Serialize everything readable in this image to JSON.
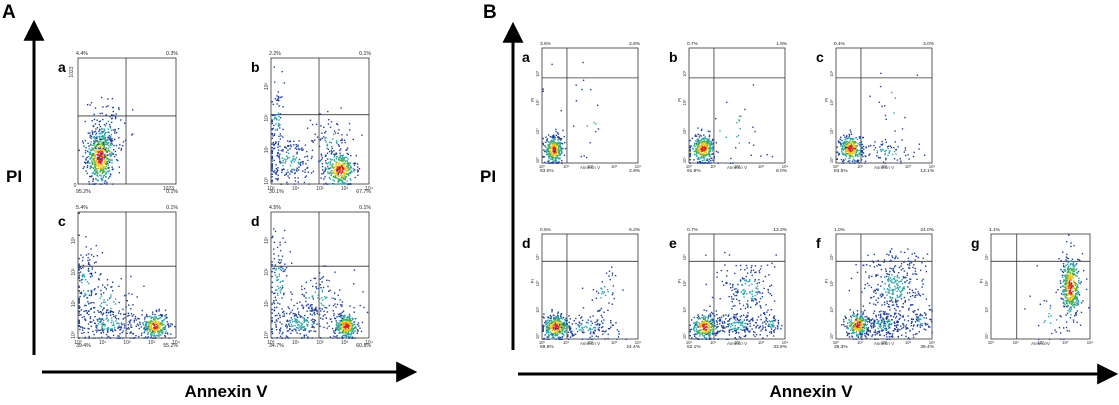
{
  "figure": {
    "panel_A_label": "A",
    "panel_B_label": "B",
    "axis_x_title": "Annexin V",
    "axis_y_title": "PI",
    "colors": {
      "frame": "#333333",
      "dot": "#1f3f9a",
      "density_mid": "#2aa3a8",
      "density_hot": "#d7261e",
      "density_warm": "#f2c21b",
      "density_green": "#45b04a"
    }
  },
  "chart_data": [
    {
      "type": "scatter",
      "panel": "A",
      "subpanel": "a",
      "quadrants": {
        "upper_left": "4.4%",
        "upper_right": "0.3%",
        "lower_left": "95.2%",
        "lower_right": "0.1%"
      },
      "y_tick_label": "1023",
      "x_end_label": "1023",
      "origin_label": "0",
      "scale": "linear",
      "population": "single cluster near origin"
    },
    {
      "type": "scatter",
      "panel": "A",
      "subpanel": "b",
      "quadrants": {
        "upper_left": "2.2%",
        "upper_right": "0.1%",
        "lower_left": "30.1%",
        "lower_right": "67.7%"
      },
      "x_ticks": [
        "10⁰",
        "10¹",
        "10²",
        "10³",
        "10⁴"
      ],
      "y_ticks": [
        "10⁰",
        "10¹",
        "10²",
        "10³"
      ],
      "scale": "log"
    },
    {
      "type": "scatter",
      "panel": "A",
      "subpanel": "c",
      "quadrants": {
        "upper_left": "5.4%",
        "upper_right": "0.1%",
        "lower_left": "39.4%",
        "lower_right": "55.2%"
      },
      "x_ticks": [
        "10⁰",
        "10¹",
        "10²",
        "10³",
        "10⁴"
      ],
      "y_ticks": [
        "10⁰",
        "10¹",
        "10²",
        "10³"
      ],
      "scale": "log"
    },
    {
      "type": "scatter",
      "panel": "A",
      "subpanel": "d",
      "quadrants": {
        "upper_left": "4.5%",
        "upper_right": "0.1%",
        "lower_left": "34.7%",
        "lower_right": "60.8%"
      },
      "x_ticks": [
        "10⁰",
        "10¹",
        "10²",
        "10³",
        "10⁴"
      ],
      "y_ticks": [
        "10⁰",
        "10¹",
        "10²",
        "10³"
      ],
      "scale": "log"
    },
    {
      "type": "scatter",
      "panel": "B",
      "subpanel": "a",
      "quadrants": {
        "upper_left": "3.6%",
        "upper_right": "2.6%",
        "lower_left": "93.0%",
        "lower_right": "2.9%"
      },
      "x_ticks": [
        "10⁰",
        "10¹",
        "10²",
        "10³",
        "10⁴"
      ],
      "y_ticks": [
        "10⁰",
        "10¹",
        "10²",
        "10³"
      ],
      "xlabel": "Annexin V",
      "ylabel": "PI",
      "scale": "log"
    },
    {
      "type": "scatter",
      "panel": "B",
      "subpanel": "b",
      "quadrants": {
        "upper_left": "0.7%",
        "upper_right": "1.9%",
        "lower_left": "91.9%",
        "lower_right": "6.0%"
      },
      "x_ticks": [
        "10⁰",
        "10¹",
        "10²",
        "10³",
        "10⁴"
      ],
      "y_ticks": [
        "10⁰",
        "10¹",
        "10²",
        "10³"
      ],
      "xlabel": "Annexin V",
      "ylabel": "PI",
      "scale": "log"
    },
    {
      "type": "scatter",
      "panel": "B",
      "subpanel": "c",
      "quadrants": {
        "upper_left": "0.4%",
        "upper_right": "3.0%",
        "lower_left": "83.5%",
        "lower_right": "13.1%"
      },
      "x_ticks": [
        "10⁰",
        "10¹",
        "10²",
        "10³",
        "10⁴"
      ],
      "y_ticks": [
        "10⁰",
        "10¹",
        "10²",
        "10³"
      ],
      "xlabel": "Annexin V",
      "ylabel": "PI",
      "scale": "log"
    },
    {
      "type": "scatter",
      "panel": "B",
      "subpanel": "d",
      "quadrants": {
        "upper_left": "0.5%",
        "upper_right": "6.2%",
        "lower_left": "68.9%",
        "lower_right": "24.4%"
      },
      "x_ticks": [
        "10⁰",
        "10¹",
        "10²",
        "10³",
        "10⁴"
      ],
      "y_ticks": [
        "10⁰",
        "10¹",
        "10²",
        "10³"
      ],
      "xlabel": "Annexin V",
      "ylabel": "PI",
      "scale": "log"
    },
    {
      "type": "scatter",
      "panel": "B",
      "subpanel": "e",
      "quadrants": {
        "upper_left": "0.7%",
        "upper_right": "13.3%",
        "lower_left": "52.1%",
        "lower_right": "33.9%"
      },
      "x_ticks": [
        "10⁰",
        "10¹",
        "10²",
        "10³",
        "10⁴"
      ],
      "y_ticks": [
        "10⁰",
        "10¹",
        "10²",
        "10³"
      ],
      "xlabel": "Annexin V",
      "ylabel": "PI",
      "scale": "log"
    },
    {
      "type": "scatter",
      "panel": "B",
      "subpanel": "f",
      "quadrants": {
        "upper_left": "1.0%",
        "upper_right": "24.0%",
        "lower_left": "35.3%",
        "lower_right": "39.4%"
      },
      "x_ticks": [
        "10⁰",
        "10¹",
        "10²",
        "10³",
        "10⁴"
      ],
      "y_ticks": [
        "10⁰",
        "10¹",
        "10²",
        "10³"
      ],
      "xlabel": "Annexin V",
      "ylabel": "PI",
      "scale": "log"
    },
    {
      "type": "scatter",
      "panel": "B",
      "subpanel": "g",
      "quadrants": {
        "upper_left": "1.1%"
      },
      "x_ticks": [
        "10⁰",
        "10¹",
        "10²",
        "10³",
        "10⁴"
      ],
      "y_ticks": [
        "10⁰",
        "10¹",
        "10²",
        "10³"
      ],
      "xlabel": "AnnexinV",
      "ylabel": "PI",
      "scale": "log"
    }
  ]
}
